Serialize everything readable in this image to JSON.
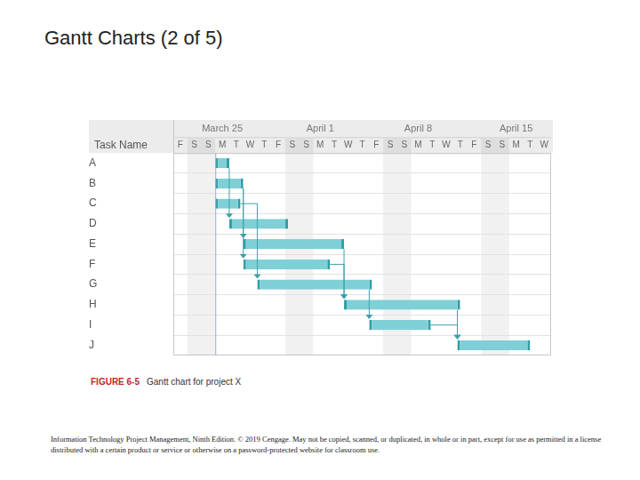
{
  "title": "Gantt Charts (2 of 5)",
  "chart_data": {
    "type": "gantt",
    "y_label": "Task Name",
    "categories": [
      "A",
      "B",
      "C",
      "D",
      "E",
      "F",
      "G",
      "H",
      "I",
      "J"
    ],
    "values": [
      [
        3,
        4
      ],
      [
        3,
        5
      ],
      [
        3,
        4.8
      ],
      [
        4,
        8.2
      ],
      [
        5,
        12.2
      ],
      [
        5,
        11.2
      ],
      [
        6,
        14.2
      ],
      [
        12.2,
        20.5
      ],
      [
        14,
        18.4
      ],
      [
        20.3,
        25.5
      ]
    ],
    "color": "#7fd0d6",
    "xlim": [
      0,
      27
    ],
    "xticks": [
      {
        "value": 0.5,
        "label": "F"
      },
      {
        "value": 1.5,
        "label": "S"
      },
      {
        "value": 2.5,
        "label": "S"
      },
      {
        "value": 3.5,
        "label": "M"
      },
      {
        "value": 4.5,
        "label": "T"
      },
      {
        "value": 5.5,
        "label": "W"
      },
      {
        "value": 6.5,
        "label": "T"
      },
      {
        "value": 7.5,
        "label": "F"
      },
      {
        "value": 8.5,
        "label": "S"
      },
      {
        "value": 9.5,
        "label": "S"
      },
      {
        "value": 10.5,
        "label": "M"
      },
      {
        "value": 11.5,
        "label": "T"
      },
      {
        "value": 12.5,
        "label": "W"
      },
      {
        "value": 13.5,
        "label": "T"
      },
      {
        "value": 14.5,
        "label": "F"
      },
      {
        "value": 15.5,
        "label": "S"
      },
      {
        "value": 16.5,
        "label": "S"
      },
      {
        "value": 17.5,
        "label": "M"
      },
      {
        "value": 18.5,
        "label": "T"
      },
      {
        "value": 19.5,
        "label": "W"
      },
      {
        "value": 20.5,
        "label": "T"
      },
      {
        "value": 21.5,
        "label": "F"
      },
      {
        "value": 22.5,
        "label": "S"
      },
      {
        "value": 23.5,
        "label": "S"
      },
      {
        "value": 24.5,
        "label": "M"
      },
      {
        "value": 25.5,
        "label": "T"
      },
      {
        "value": 26.5,
        "label": "W"
      }
    ],
    "week_ticks": [
      {
        "value": 3.5,
        "label": "March 25"
      },
      {
        "value": 10.5,
        "label": "April 1"
      },
      {
        "value": 17.5,
        "label": "April 8"
      },
      {
        "value": 24.5,
        "label": "April 15"
      }
    ],
    "nonworking": [
      [
        1,
        3
      ],
      [
        8,
        10
      ],
      [
        15,
        17
      ],
      [
        22,
        24
      ]
    ],
    "status_date": 3,
    "dependencies": [
      [
        "A",
        "D"
      ],
      [
        "B",
        "E"
      ],
      [
        "B",
        "F"
      ],
      [
        "C",
        "G"
      ],
      [
        "E",
        "H"
      ],
      [
        "F",
        "H"
      ],
      [
        "G",
        "I"
      ],
      [
        "H",
        "J"
      ],
      [
        "I",
        "J"
      ]
    ],
    "grid": true
  },
  "caption": {
    "figure": "FIGURE 6-5",
    "text": "Gantt chart for project X"
  },
  "footer": "Information Technology Project Management, Ninth Edition. © 2019 Cengage. May not be copied, scanned, or duplicated, in whole or in part, except for use as permitted in a license distributed with a certain product or service or otherwise on a password-protected website for classroom use."
}
